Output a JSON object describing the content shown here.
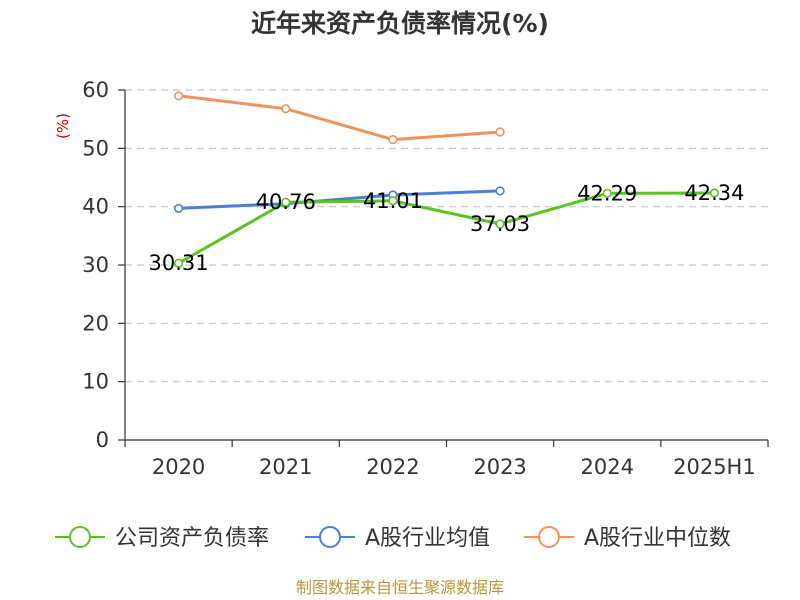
{
  "chart_data": {
    "type": "line",
    "title": "近年来资产负债率情况(%)",
    "ylabel": "(%)",
    "xlabel": "",
    "categories": [
      "2020",
      "2021",
      "2022",
      "2023",
      "2024",
      "2025H1"
    ],
    "ylim": [
      0,
      60
    ],
    "yticks": [
      0,
      10,
      20,
      30,
      40,
      50,
      60
    ],
    "grid": true,
    "legend_position": "bottom",
    "series": [
      {
        "name": "公司资产负债率",
        "color": "#5bc125",
        "values": [
          30.31,
          40.76,
          41.01,
          37.03,
          42.29,
          42.34
        ],
        "labels": [
          "30.31",
          "40.76",
          "41.01",
          "37.03",
          "42.29",
          "42.34"
        ]
      },
      {
        "name": "A股行业均值",
        "color": "#4a7fd9",
        "values": [
          39.7,
          40.5,
          42.0,
          42.7,
          null,
          null
        ]
      },
      {
        "name": "A股行业中位数",
        "color": "#f2915c",
        "values": [
          59.0,
          56.8,
          51.5,
          52.8,
          null,
          null
        ]
      }
    ]
  },
  "footer": {
    "source": "制图数据来自恒生聚源数据库"
  }
}
